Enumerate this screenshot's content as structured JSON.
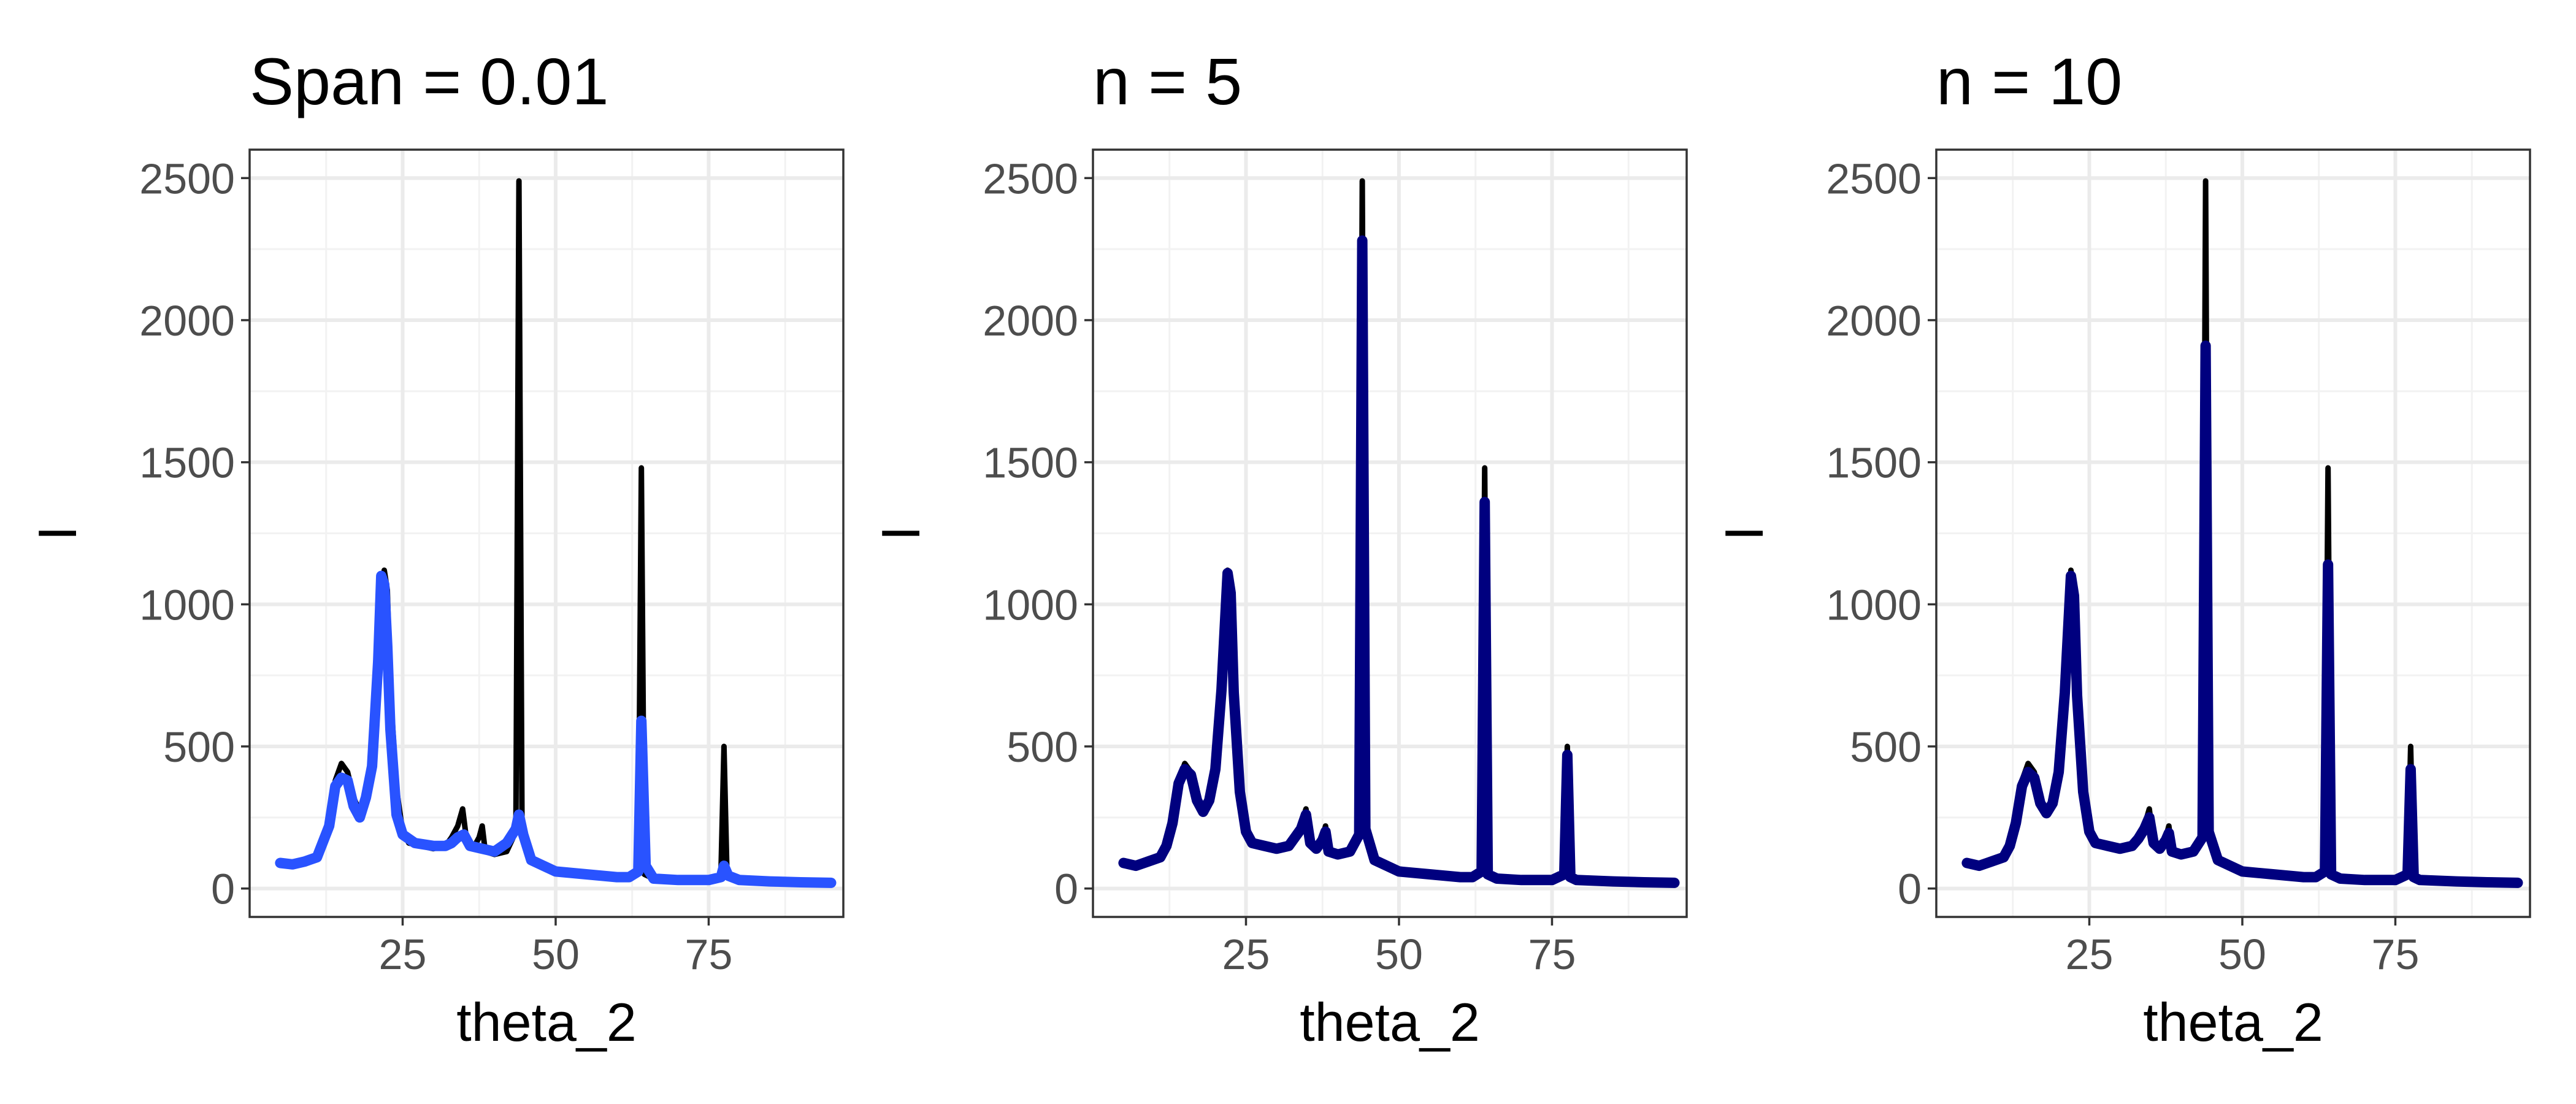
{
  "chart_data": [
    {
      "type": "line",
      "title": "Span = 0.01",
      "xlabel": "theta_2",
      "ylabel": "I",
      "xlim": [
        0,
        97
      ],
      "ylim": [
        -100,
        2600
      ],
      "x_ticks": [
        25,
        50,
        75
      ],
      "y_ticks": [
        0,
        500,
        1000,
        1500,
        2000,
        2500
      ],
      "grid": true,
      "series": [
        {
          "role": "raw",
          "color": "#000000",
          "x": [
            5,
            7,
            9,
            11,
            12,
            13,
            14,
            15,
            16,
            17,
            18,
            19,
            20,
            21,
            22,
            22.5,
            23,
            24,
            25,
            26,
            28,
            30,
            32,
            33,
            34,
            34.8,
            35.5,
            36.5,
            37.5,
            38,
            38.5,
            40,
            42,
            43.5,
            44,
            44.5,
            46,
            50,
            55,
            60,
            62,
            63.5,
            64,
            64.5,
            66,
            70,
            75,
            77,
            77.5,
            78,
            79,
            85,
            90,
            95
          ],
          "y": [
            90,
            80,
            95,
            110,
            150,
            230,
            380,
            440,
            410,
            320,
            270,
            310,
            430,
            700,
            1120,
            1050,
            700,
            350,
            200,
            160,
            150,
            140,
            150,
            180,
            220,
            280,
            160,
            140,
            180,
            220,
            130,
            120,
            130,
            200,
            2490,
            220,
            100,
            60,
            50,
            40,
            40,
            60,
            1480,
            50,
            35,
            30,
            30,
            50,
            500,
            40,
            30,
            25,
            22,
            20
          ]
        },
        {
          "role": "smoothed",
          "color": "#2953ff",
          "x": [
            5,
            7,
            9,
            11,
            13,
            14,
            15,
            16,
            17,
            18,
            19,
            20,
            21,
            21.5,
            22,
            22.5,
            23,
            24,
            25,
            27,
            30,
            32,
            33,
            34,
            35,
            36,
            38,
            40,
            42,
            43.5,
            44,
            44.7,
            46,
            50,
            55,
            60,
            62,
            63.5,
            64,
            64.7,
            66,
            70,
            75,
            77,
            77.5,
            78.2,
            80,
            85,
            90,
            95
          ],
          "y": [
            90,
            85,
            95,
            110,
            220,
            360,
            390,
            380,
            290,
            250,
            320,
            430,
            800,
            1100,
            1070,
            850,
            560,
            260,
            190,
            160,
            150,
            150,
            160,
            180,
            190,
            150,
            140,
            130,
            160,
            210,
            260,
            190,
            100,
            60,
            50,
            40,
            40,
            60,
            590,
            80,
            35,
            30,
            30,
            40,
            80,
            45,
            30,
            25,
            22,
            20
          ]
        }
      ]
    },
    {
      "type": "line",
      "title": "n = 5",
      "xlabel": "theta_2",
      "ylabel": "I",
      "xlim": [
        0,
        97
      ],
      "ylim": [
        -100,
        2600
      ],
      "x_ticks": [
        25,
        50,
        75
      ],
      "y_ticks": [
        0,
        500,
        1000,
        1500,
        2000,
        2500
      ],
      "grid": true,
      "series": [
        {
          "role": "raw",
          "color": "#000000",
          "x": [
            5,
            7,
            9,
            11,
            12,
            13,
            14,
            15,
            16,
            17,
            18,
            19,
            20,
            21,
            22,
            22.5,
            23,
            24,
            25,
            26,
            28,
            30,
            32,
            33,
            34,
            34.8,
            35.5,
            36.5,
            37.5,
            38,
            38.5,
            40,
            42,
            43.5,
            44,
            44.5,
            46,
            50,
            55,
            60,
            62,
            63.5,
            64,
            64.5,
            66,
            70,
            75,
            77,
            77.5,
            78,
            79,
            85,
            90,
            95
          ],
          "y": [
            90,
            80,
            95,
            110,
            150,
            230,
            380,
            440,
            410,
            320,
            270,
            310,
            430,
            700,
            1120,
            1050,
            700,
            350,
            200,
            160,
            150,
            140,
            150,
            180,
            220,
            280,
            160,
            140,
            180,
            220,
            130,
            120,
            130,
            200,
            2490,
            220,
            100,
            60,
            50,
            40,
            40,
            60,
            1480,
            50,
            35,
            30,
            30,
            50,
            500,
            40,
            30,
            25,
            22,
            20
          ]
        },
        {
          "role": "smoothed",
          "color": "#00007f",
          "x": [
            5,
            7,
            9,
            11,
            12,
            13,
            14,
            15,
            16,
            17,
            18,
            19,
            20,
            21,
            22,
            22.5,
            23,
            24,
            25,
            26,
            28,
            30,
            32,
            33,
            34,
            34.8,
            35.5,
            36.5,
            37.5,
            38,
            38.5,
            40,
            42,
            43.5,
            44,
            44.5,
            46,
            50,
            55,
            60,
            62,
            63.5,
            64,
            64.5,
            66,
            70,
            75,
            77,
            77.5,
            78,
            79,
            85,
            90,
            95
          ],
          "y": [
            90,
            80,
            95,
            110,
            150,
            230,
            370,
            420,
            400,
            310,
            270,
            310,
            420,
            700,
            1110,
            1040,
            690,
            340,
            200,
            160,
            150,
            140,
            150,
            180,
            210,
            260,
            160,
            140,
            170,
            200,
            130,
            120,
            130,
            190,
            2280,
            210,
            100,
            60,
            50,
            40,
            40,
            60,
            1360,
            50,
            35,
            30,
            30,
            50,
            470,
            40,
            30,
            25,
            22,
            20
          ]
        }
      ]
    },
    {
      "type": "line",
      "title": "n = 10",
      "xlabel": "theta_2",
      "ylabel": "I",
      "xlim": [
        0,
        97
      ],
      "ylim": [
        -100,
        2600
      ],
      "x_ticks": [
        25,
        50,
        75
      ],
      "y_ticks": [
        0,
        500,
        1000,
        1500,
        2000,
        2500
      ],
      "grid": true,
      "series": [
        {
          "role": "raw",
          "color": "#000000",
          "x": [
            5,
            7,
            9,
            11,
            12,
            13,
            14,
            15,
            16,
            17,
            18,
            19,
            20,
            21,
            22,
            22.5,
            23,
            24,
            25,
            26,
            28,
            30,
            32,
            33,
            34,
            34.8,
            35.5,
            36.5,
            37.5,
            38,
            38.5,
            40,
            42,
            43.5,
            44,
            44.5,
            46,
            50,
            55,
            60,
            62,
            63.5,
            64,
            64.5,
            66,
            70,
            75,
            77,
            77.5,
            78,
            79,
            85,
            90,
            95
          ],
          "y": [
            90,
            80,
            95,
            110,
            150,
            230,
            380,
            440,
            410,
            320,
            270,
            310,
            430,
            700,
            1120,
            1050,
            700,
            350,
            200,
            160,
            150,
            140,
            150,
            180,
            220,
            280,
            160,
            140,
            180,
            220,
            130,
            120,
            130,
            200,
            2490,
            220,
            100,
            60,
            50,
            40,
            40,
            60,
            1480,
            50,
            35,
            30,
            30,
            50,
            500,
            40,
            30,
            25,
            22,
            20
          ]
        },
        {
          "role": "smoothed",
          "color": "#00007f",
          "x": [
            5,
            7,
            9,
            11,
            12,
            13,
            14,
            15,
            16,
            17,
            18,
            19,
            20,
            21,
            22,
            22.5,
            23,
            24,
            25,
            26,
            28,
            30,
            32,
            33,
            34,
            34.8,
            35.5,
            36.5,
            37.5,
            38,
            38.5,
            40,
            42,
            43.5,
            44,
            44.5,
            46,
            50,
            55,
            60,
            62,
            63.5,
            64,
            64.5,
            66,
            70,
            75,
            77,
            77.5,
            78,
            79,
            85,
            90,
            95
          ],
          "y": [
            90,
            80,
            95,
            110,
            150,
            230,
            360,
            410,
            390,
            300,
            265,
            300,
            410,
            690,
            1100,
            1030,
            680,
            340,
            200,
            160,
            150,
            140,
            150,
            175,
            210,
            250,
            160,
            140,
            170,
            195,
            130,
            120,
            130,
            180,
            1910,
            200,
            100,
            60,
            50,
            40,
            40,
            60,
            1140,
            50,
            35,
            30,
            30,
            50,
            420,
            40,
            30,
            25,
            22,
            20
          ]
        }
      ]
    }
  ]
}
